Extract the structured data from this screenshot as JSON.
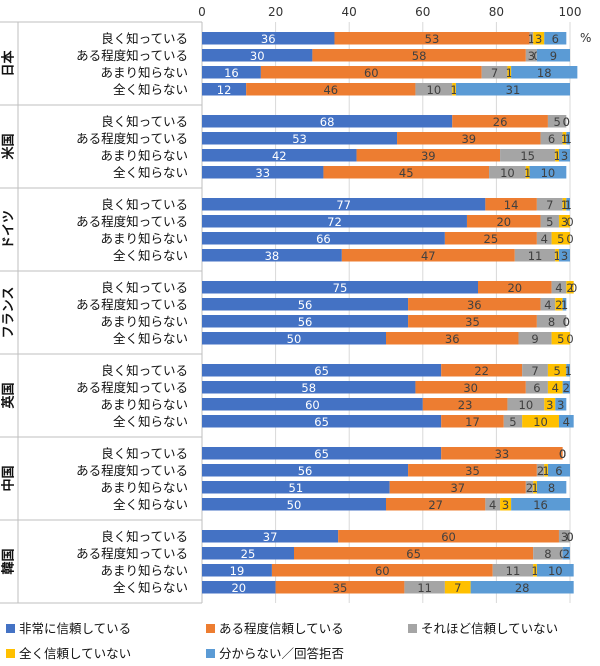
{
  "chart_data": {
    "type": "bar",
    "orientation": "horizontal",
    "stacked": true,
    "xlim": [
      0,
      100
    ],
    "xticks": [
      "0",
      "20",
      "40",
      "60",
      "80",
      "100"
    ],
    "unit_label": "%",
    "colors": [
      "#4472C4",
      "#ED7D31",
      "#A5A5A5",
      "#FFC000",
      "#5B9BD5"
    ],
    "legend": [
      "非常に信頼している",
      "ある程度信頼している",
      "それほど信頼していない",
      "全く信頼していない",
      "分からない／回答拒否"
    ],
    "groups": [
      {
        "country": "日本",
        "rows": [
          {
            "label": "良く知っている",
            "values": [
              36,
              53,
              1,
              3,
              6
            ]
          },
          {
            "label": "ある程度知っている",
            "values": [
              30,
              58,
              3,
              0,
              9
            ]
          },
          {
            "label": "あまり知らない",
            "values": [
              16,
              60,
              7,
              1,
              18
            ]
          },
          {
            "label": "全く知らない",
            "values": [
              12,
              46,
              10,
              1,
              31
            ]
          }
        ]
      },
      {
        "country": "米国",
        "rows": [
          {
            "label": "良く知っている",
            "values": [
              68,
              26,
              5,
              0,
              0
            ]
          },
          {
            "label": "ある程度知っている",
            "values": [
              53,
              39,
              6,
              1,
              1
            ]
          },
          {
            "label": "あまり知らない",
            "values": [
              42,
              39,
              15,
              1,
              3
            ]
          },
          {
            "label": "全く知らない",
            "values": [
              33,
              45,
              10,
              1,
              10
            ]
          }
        ]
      },
      {
        "country": "ドイツ",
        "rows": [
          {
            "label": "良く知っている",
            "values": [
              77,
              14,
              7,
              1,
              1
            ]
          },
          {
            "label": "ある程度知っている",
            "values": [
              72,
              20,
              5,
              3,
              0
            ]
          },
          {
            "label": "あまり知らない",
            "values": [
              66,
              25,
              4,
              5,
              0
            ]
          },
          {
            "label": "全く知らない",
            "values": [
              38,
              47,
              11,
              1,
              3
            ]
          }
        ]
      },
      {
        "country": "フランス",
        "rows": [
          {
            "label": "良く知っている",
            "values": [
              75,
              20,
              4,
              2,
              0
            ]
          },
          {
            "label": "ある程度知っている",
            "values": [
              56,
              36,
              4,
              2,
              1
            ]
          },
          {
            "label": "あまり知らない",
            "values": [
              56,
              35,
              8,
              0,
              0
            ]
          },
          {
            "label": "全く知らない",
            "values": [
              50,
              36,
              9,
              5,
              0
            ]
          }
        ]
      },
      {
        "country": "英国",
        "rows": [
          {
            "label": "良く知っている",
            "values": [
              65,
              22,
              7,
              5,
              1
            ]
          },
          {
            "label": "ある程度知っている",
            "values": [
              58,
              30,
              6,
              4,
              2
            ]
          },
          {
            "label": "あまり知らない",
            "values": [
              60,
              23,
              10,
              3,
              3
            ]
          },
          {
            "label": "全く知らない",
            "values": [
              65,
              17,
              5,
              10,
              4
            ]
          }
        ]
      },
      {
        "country": "中国",
        "rows": [
          {
            "label": "良く知っている",
            "values": [
              65,
              33,
              0,
              0,
              0
            ]
          },
          {
            "label": "ある程度知っている",
            "values": [
              56,
              35,
              2,
              1,
              6
            ]
          },
          {
            "label": "あまり知らない",
            "values": [
              51,
              37,
              2,
              1,
              8
            ]
          },
          {
            "label": "全く知らない",
            "values": [
              50,
              27,
              4,
              3,
              16
            ]
          }
        ]
      },
      {
        "country": "韓国",
        "rows": [
          {
            "label": "良く知っている",
            "values": [
              37,
              60,
              3,
              0,
              0
            ]
          },
          {
            "label": "ある程度知っている",
            "values": [
              25,
              65,
              8,
              0,
              2
            ]
          },
          {
            "label": "あまり知らない",
            "values": [
              19,
              60,
              11,
              1,
              10
            ]
          },
          {
            "label": "全く知らない",
            "values": [
              20,
              35,
              11,
              7,
              28
            ]
          }
        ]
      }
    ]
  }
}
